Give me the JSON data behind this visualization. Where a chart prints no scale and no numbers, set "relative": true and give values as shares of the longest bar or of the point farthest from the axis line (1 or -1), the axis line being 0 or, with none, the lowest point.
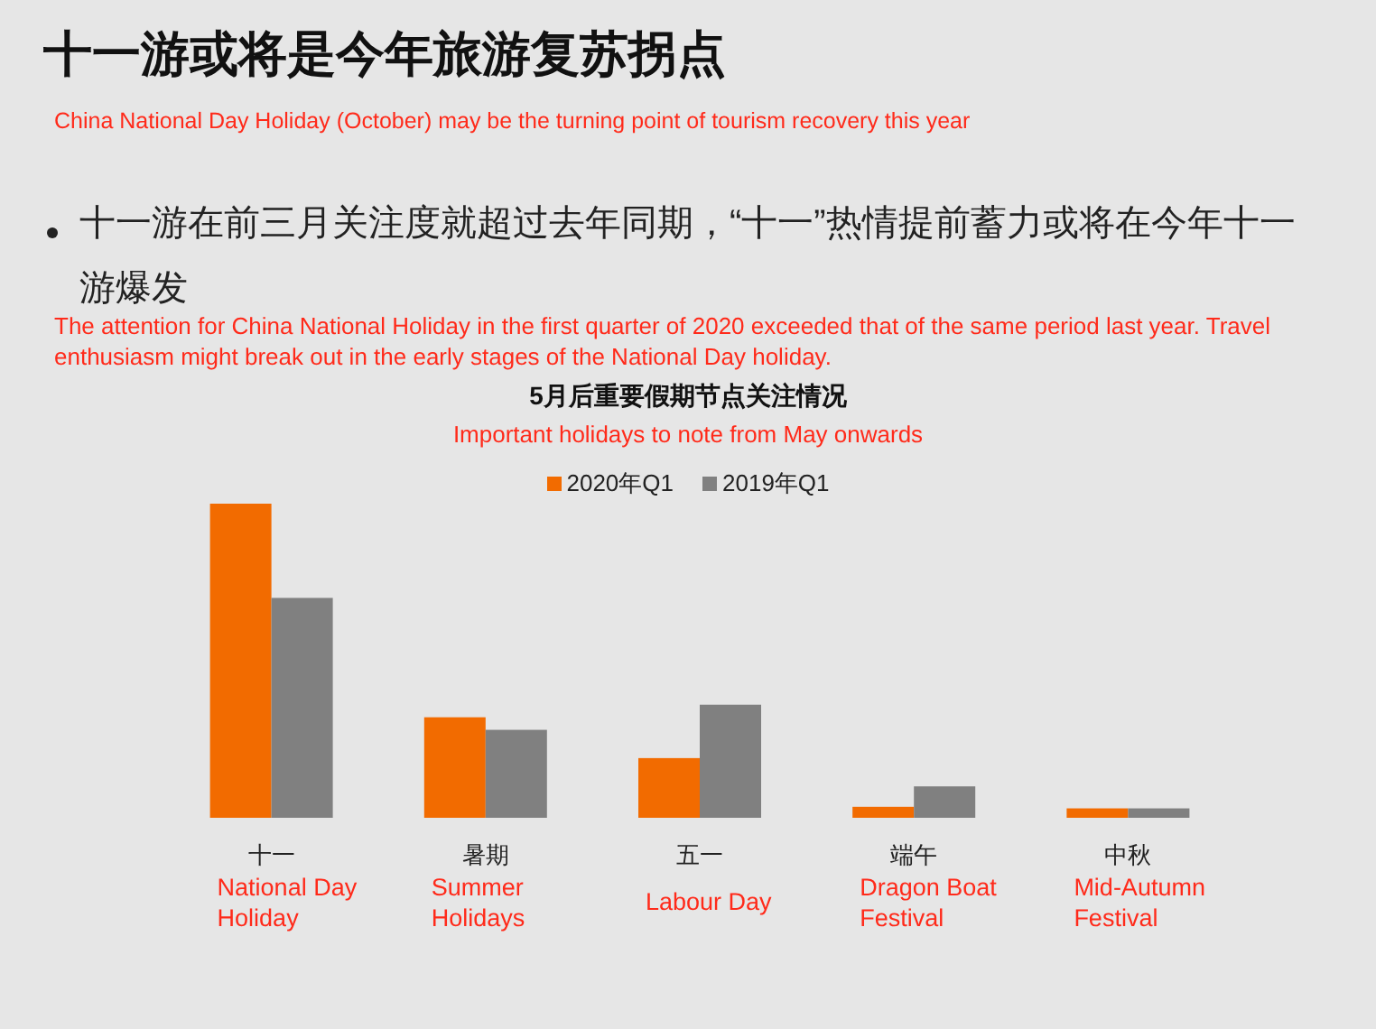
{
  "chart_data": {
    "type": "bar",
    "title": "十一游或将是今年旅游复苏拐点",
    "subtitle": "5月后重要假期节点关注情况",
    "relative": true,
    "legend": "top",
    "annotations": [
      "China National Day Holiday (October) may be the turning point of tourism recovery this year",
      "十一游在前三月关注度就超过去年同期，“十一”热情提前蓄力或将在今年十一游爆发",
      "The attention for China National Holiday in the first quarter of 2020 exceeded that of the same period last year. Travel enthusiasm might break out in the early stages of the National Day holiday.",
      "Important holidays to note from May onwards",
      "National Day Holiday",
      "Summer Holidays",
      "Labour Day",
      "Dragon Boat Festival",
      "Mid-Autumn Festival"
    ],
    "categories": [
      "十一",
      "暑期",
      "五一",
      "端午",
      "中秋"
    ],
    "series": [
      {
        "name": "2020年Q1",
        "color": "#f26b00",
        "values": [
          1,
          0.32,
          0.19,
          0.035,
          0.03
        ]
      },
      {
        "name": "2019年Q1",
        "color": "#808080",
        "values": [
          0.7,
          0.28,
          0.36,
          0.1,
          0.03
        ]
      }
    ]
  }
}
